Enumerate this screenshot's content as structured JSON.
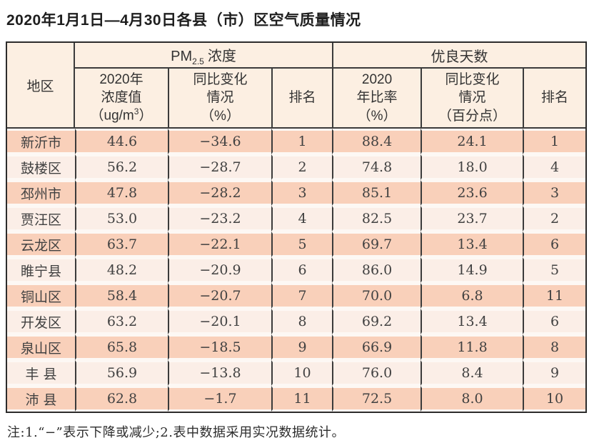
{
  "title": "2020年1月1日—4月30日各县（市）区空气质量情况",
  "table": {
    "headers": {
      "region": "地区",
      "pm_group": {
        "prefix": "PM",
        "sub": "2.5",
        "label": "浓度"
      },
      "good_group": "优良天数",
      "pm_value": {
        "l1": "2020年",
        "l2": "浓度值",
        "l3_pre": "（ug/m",
        "l3_sup": "3",
        "l3_post": "）"
      },
      "pm_change": {
        "l1": "同比变化",
        "l2": "情况",
        "l3": "（%）"
      },
      "pm_rank": "排名",
      "good_ratio": {
        "l1": "2020",
        "l2": "年比率",
        "l3": "（%）"
      },
      "good_change": {
        "l1": "同比变化",
        "l2": "情况",
        "l3": "（百分点）"
      },
      "good_rank": "排名"
    },
    "rows": [
      {
        "region": "新沂市",
        "pm_value": "44.6",
        "pm_change": "−34.6",
        "pm_rank": "1",
        "good_ratio": "88.4",
        "good_change": "24.1",
        "good_rank": "1"
      },
      {
        "region": "鼓楼区",
        "pm_value": "56.2",
        "pm_change": "−28.7",
        "pm_rank": "2",
        "good_ratio": "74.8",
        "good_change": "18.0",
        "good_rank": "4"
      },
      {
        "region": "邳州市",
        "pm_value": "47.8",
        "pm_change": "−28.2",
        "pm_rank": "3",
        "good_ratio": "85.1",
        "good_change": "23.6",
        "good_rank": "3"
      },
      {
        "region": "贾汪区",
        "pm_value": "53.0",
        "pm_change": "−23.2",
        "pm_rank": "4",
        "good_ratio": "82.5",
        "good_change": "23.7",
        "good_rank": "2"
      },
      {
        "region": "云龙区",
        "pm_value": "63.7",
        "pm_change": "−22.1",
        "pm_rank": "5",
        "good_ratio": "69.7",
        "good_change": "13.4",
        "good_rank": "6"
      },
      {
        "region": "睢宁县",
        "pm_value": "48.2",
        "pm_change": "−20.9",
        "pm_rank": "6",
        "good_ratio": "86.0",
        "good_change": "14.9",
        "good_rank": "5"
      },
      {
        "region": "铜山区",
        "pm_value": "58.4",
        "pm_change": "−20.7",
        "pm_rank": "7",
        "good_ratio": "70.0",
        "good_change": "6.8",
        "good_rank": "11"
      },
      {
        "region": "开发区",
        "pm_value": "63.2",
        "pm_change": "−20.1",
        "pm_rank": "8",
        "good_ratio": "69.2",
        "good_change": "13.4",
        "good_rank": "6"
      },
      {
        "region": "泉山区",
        "pm_value": "65.8",
        "pm_change": "−18.5",
        "pm_rank": "9",
        "good_ratio": "66.9",
        "good_change": "11.8",
        "good_rank": "8"
      },
      {
        "region": "丰 县",
        "pm_value": "56.9",
        "pm_change": "−13.8",
        "pm_rank": "10",
        "good_ratio": "76.0",
        "good_change": "8.4",
        "good_rank": "9"
      },
      {
        "region": "沛 县",
        "pm_value": "62.8",
        "pm_change": "−1.7",
        "pm_rank": "11",
        "good_ratio": "72.5",
        "good_change": "8.0",
        "good_rank": "10"
      }
    ]
  },
  "note": "注:1.“−”表示下降或减少;2.表中数据采用实况数据统计。",
  "colors": {
    "row_odd": "#f9d0ba",
    "row_even": "#fbeee7",
    "header_bg": "#fcefe2",
    "grid_line": "#3b3b3b",
    "outer_border": "#2c2c2c"
  }
}
